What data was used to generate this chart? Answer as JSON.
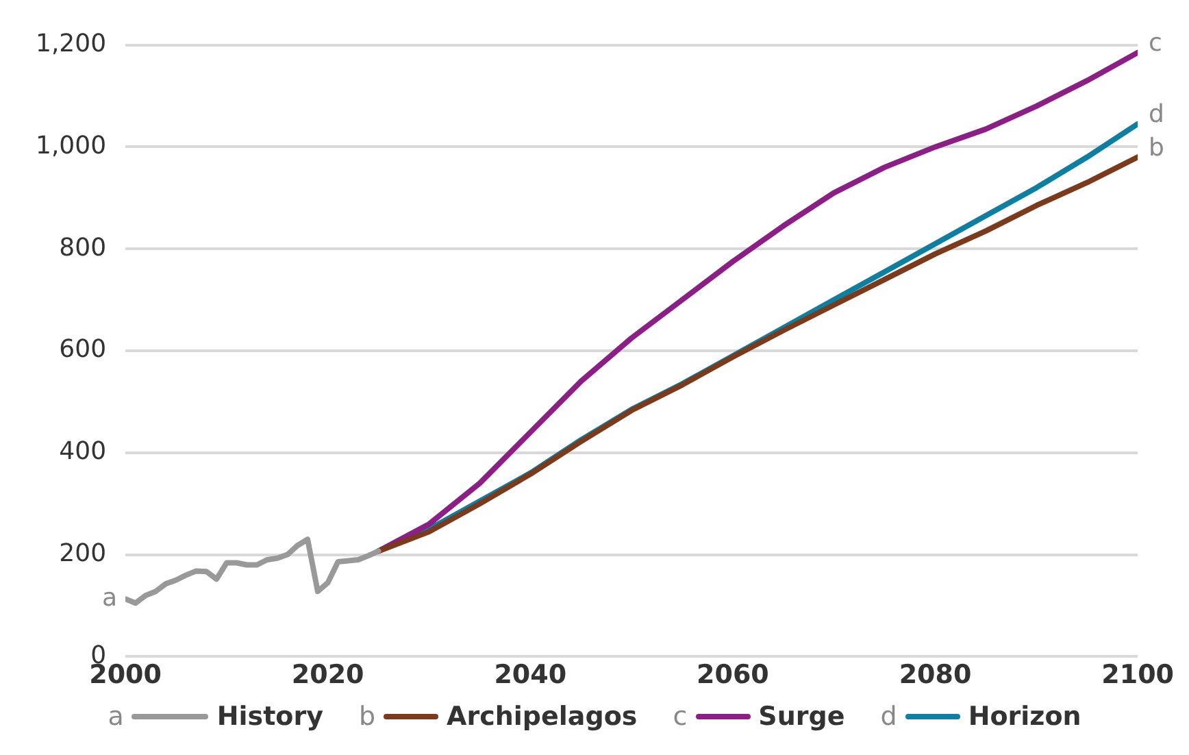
{
  "chart_data": {
    "type": "line",
    "xlim": [
      2000,
      2100
    ],
    "xticks": [
      2000,
      2020,
      2040,
      2060,
      2080,
      2100
    ],
    "ylim": [
      0,
      1200
    ],
    "yticks": [
      0,
      200,
      400,
      600,
      800,
      {
        "value": 1000,
        "label": "1,000"
      },
      {
        "value": 1200,
        "label": "1,200"
      }
    ],
    "grid": "y",
    "legend": "bottom",
    "marker": "none",
    "line_style": "solid",
    "series": [
      {
        "name": "History",
        "color": "#999999",
        "x": [
          2000,
          2001,
          2002,
          2003,
          2004,
          2005,
          2006,
          2007,
          2008,
          2009,
          2010,
          2011,
          2012,
          2013,
          2014,
          2015,
          2016,
          2017,
          2018,
          2019,
          2020,
          2021,
          2022,
          2023,
          2024,
          2025
        ],
        "values": [
          113,
          105,
          120,
          128,
          143,
          150,
          160,
          168,
          167,
          152,
          184,
          184,
          180,
          180,
          190,
          193,
          200,
          218,
          230,
          128,
          145,
          186,
          188,
          190,
          198,
          207
        ]
      },
      {
        "name": "Archipelagos",
        "color": "#7b3a1c",
        "x": [
          2025,
          2030,
          2035,
          2040,
          2045,
          2050,
          2055,
          2060,
          2065,
          2070,
          2075,
          2080,
          2085,
          2090,
          2095,
          2100
        ],
        "values": [
          207,
          245,
          300,
          358,
          422,
          483,
          533,
          588,
          640,
          690,
          740,
          790,
          835,
          885,
          930,
          980
        ]
      },
      {
        "name": "Surge",
        "color": "#8b1f86",
        "x": [
          2025,
          2030,
          2035,
          2040,
          2045,
          2050,
          2055,
          2060,
          2065,
          2070,
          2075,
          2080,
          2085,
          2090,
          2095,
          2100
        ],
        "values": [
          207,
          260,
          340,
          440,
          540,
          625,
          700,
          775,
          845,
          910,
          960,
          1000,
          1035,
          1080,
          1130,
          1185
        ]
      },
      {
        "name": "Horizon",
        "color": "#0e7fa0",
        "x": [
          2025,
          2030,
          2035,
          2040,
          2045,
          2050,
          2055,
          2060,
          2065,
          2070,
          2075,
          2080,
          2085,
          2090,
          2095,
          2100
        ],
        "values": [
          207,
          250,
          305,
          360,
          425,
          485,
          535,
          590,
          645,
          700,
          755,
          810,
          865,
          920,
          980,
          1045
        ]
      }
    ],
    "annotations": [
      "a",
      "b",
      "c",
      "d"
    ]
  }
}
